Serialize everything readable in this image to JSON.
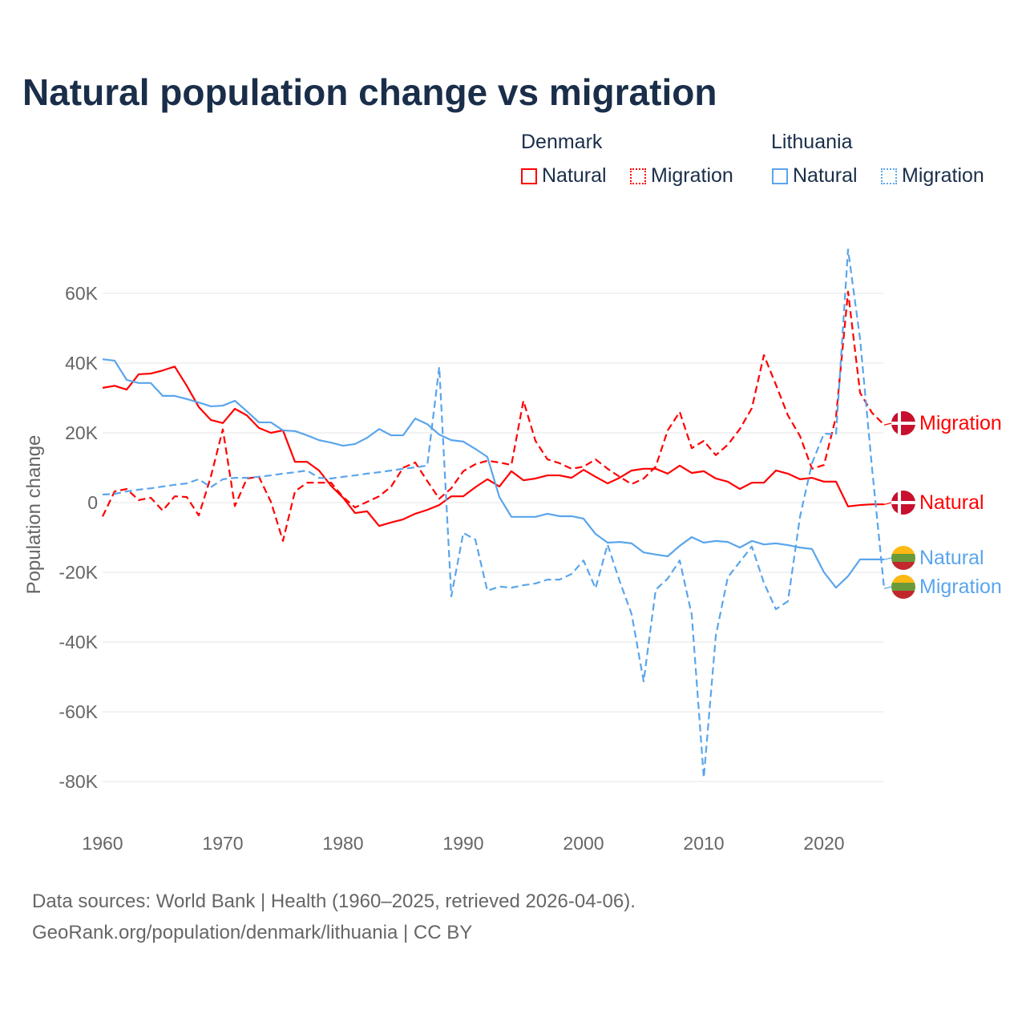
{
  "title": "Natural population change vs migration",
  "legend": {
    "groups": [
      {
        "name": "Denmark",
        "items": [
          "Natural",
          "Migration"
        ],
        "color": "#ff0000"
      },
      {
        "name": "Lithuania",
        "items": [
          "Natural",
          "Migration"
        ],
        "color": "#5aa5ec"
      }
    ]
  },
  "footer": {
    "line1": "Data sources: World Bank | Health (1960–2025, retrieved 2026-04-06).",
    "line2": "GeoRank.org/population/denmark/lithuania | CC BY"
  },
  "chart_data": {
    "type": "line",
    "title": "Natural population change vs migration",
    "xlabel": "",
    "ylabel": "Population change",
    "xlim": [
      1960,
      2025
    ],
    "ylim": [
      -90000,
      75000
    ],
    "x_ticks": [
      1960,
      1970,
      1980,
      1990,
      2000,
      2010,
      2020
    ],
    "x_tick_labels": [
      "1960",
      "1970",
      "1980",
      "1990",
      "2000",
      "2010",
      "2020"
    ],
    "y_ticks": [
      60000,
      40000,
      20000,
      0,
      -20000,
      -40000,
      -60000,
      -80000
    ],
    "y_tick_labels": [
      "60K",
      "40K",
      "20K",
      "0",
      "-20K",
      "-40K",
      "-60K",
      "-80K"
    ],
    "grid": true,
    "legend_position": "top-right",
    "x_start": 1960,
    "series": [
      {
        "name": "Denmark Natural",
        "end_label": "Natural",
        "country": "Denmark",
        "style": "solid",
        "color": "#ff0000",
        "values": [
          32.9,
          33.5,
          32.4,
          36.8,
          37,
          37.9,
          39,
          33.5,
          27.4,
          23.7,
          22.8,
          26.9,
          25,
          21.4,
          20,
          20.7,
          11.7,
          11.7,
          9.2,
          4.8,
          1.4,
          -3,
          -2.5,
          -6.7,
          -5.7,
          -4.8,
          -3.2,
          -2.1,
          -0.7,
          1.8,
          1.8,
          4.4,
          6.7,
          4.6,
          9,
          6.4,
          6.9,
          7.8,
          7.8,
          7.1,
          9.4,
          7.4,
          5.5,
          7.1,
          9.2,
          9.7,
          9.7,
          8.3,
          10.6,
          8.5,
          9,
          6.9,
          6,
          3.9,
          5.7,
          5.7,
          9.2,
          8.3,
          6.7,
          7.1,
          6,
          6,
          -1.1,
          -0.7,
          -0.5,
          -0.5
        ]
      },
      {
        "name": "Denmark Migration",
        "end_label": "Migration",
        "country": "Denmark",
        "style": "dashed",
        "color": "#ff0000",
        "values": [
          -4,
          3.2,
          3.9,
          0.7,
          1.4,
          -2.3,
          1.8,
          1.6,
          -3.7,
          7.4,
          21,
          -1,
          6.9,
          7.4,
          0.2,
          -11,
          3.2,
          5.7,
          5.7,
          5.7,
          1.6,
          -1.4,
          0.2,
          1.8,
          4.6,
          10,
          11.5,
          6.2,
          1.1,
          4.1,
          9,
          11,
          12,
          11.5,
          10.8,
          29.2,
          17.7,
          12.4,
          11.3,
          9.7,
          10.3,
          12.4,
          9.7,
          7.4,
          5.3,
          6.9,
          10.3,
          20.7,
          26,
          15.6,
          17.7,
          13.6,
          16.6,
          21.1,
          27.1,
          42.3,
          33.8,
          25,
          19.1,
          9.7,
          10.8,
          24.6,
          60.5,
          31.5,
          25.7,
          22.3
        ]
      },
      {
        "name": "Lithuania Natural",
        "end_label": "Natural",
        "country": "Lithuania",
        "style": "solid",
        "color": "#5aa5ec",
        "values": [
          41.1,
          40.7,
          35.2,
          34.3,
          34.3,
          30.6,
          30.6,
          29.7,
          28.7,
          27.6,
          27.8,
          29.2,
          26.2,
          23,
          23,
          20.7,
          20.5,
          19.3,
          17.9,
          17.2,
          16.3,
          16.8,
          18.6,
          21.1,
          19.3,
          19.3,
          24.1,
          22.5,
          19.5,
          17.9,
          17.5,
          15.4,
          13.1,
          1.6,
          -4.1,
          -4.1,
          -4.1,
          -3.2,
          -3.9,
          -3.9,
          -4.6,
          -9,
          -11.5,
          -11.3,
          -11.7,
          -14.3,
          -14.9,
          -15.4,
          -12.4,
          -9.9,
          -11.5,
          -11,
          -11.3,
          -12.9,
          -11,
          -12,
          -11.7,
          -12.2,
          -12.9,
          -13.3,
          -20,
          -24.4,
          -21.1,
          -16.3,
          -16.3,
          -16.3
        ]
      },
      {
        "name": "Lithuania Migration",
        "end_label": "Migration",
        "country": "Lithuania",
        "style": "dashed",
        "color": "#5aa5ec",
        "values": [
          2.3,
          2.5,
          3.2,
          3.7,
          4.1,
          4.6,
          5.1,
          5.5,
          6.7,
          4.4,
          6.7,
          7.1,
          7.1,
          7.4,
          7.8,
          8.3,
          8.7,
          9.2,
          7.1,
          6.9,
          7.4,
          7.8,
          8.3,
          8.7,
          9.2,
          9.7,
          10.1,
          10.6,
          38.9,
          -26.9,
          -8.7,
          -10.6,
          -25.3,
          -24.1,
          -24.4,
          -23.7,
          -23.2,
          -22.1,
          -22.1,
          -20.5,
          -16.6,
          -24.6,
          -12,
          -22.5,
          -32,
          -51.3,
          -25,
          -21.8,
          -16.6,
          -32.2,
          -78.9,
          -38.2,
          -21.4,
          -17,
          -12.6,
          -23,
          -30.6,
          -28.3,
          -4.1,
          11.3,
          19.8,
          19.5,
          72.6,
          46.9,
          9.7,
          -24.6
        ]
      }
    ],
    "value_unit": "thousands"
  }
}
